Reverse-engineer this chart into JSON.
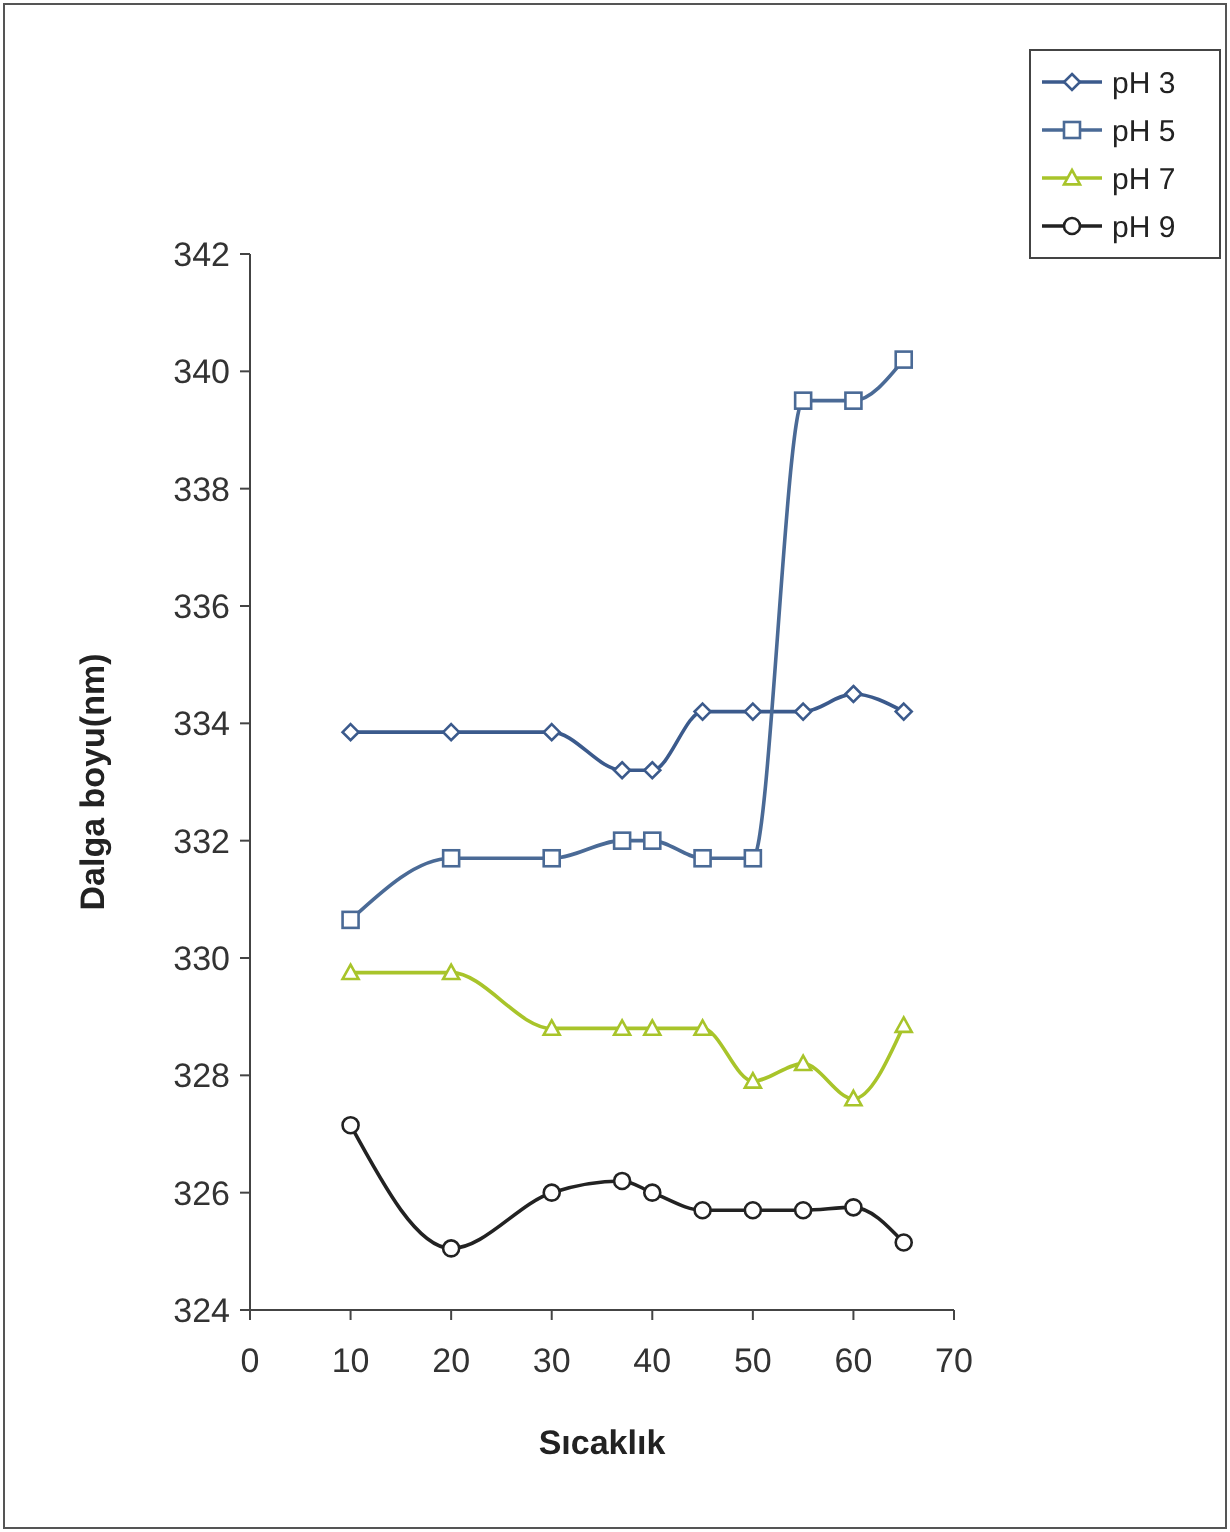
{
  "chart_data": {
    "type": "line",
    "xlabel": "Sıcaklık",
    "ylabel": "Dalga boyu(nm)",
    "x": [
      10,
      20,
      30,
      37,
      40,
      45,
      50,
      55,
      60,
      65
    ],
    "xlim": [
      0,
      70
    ],
    "xticks": [
      0,
      10,
      20,
      30,
      40,
      50,
      60,
      70
    ],
    "ylim": [
      324,
      342
    ],
    "yticks": [
      324,
      326,
      328,
      330,
      332,
      334,
      336,
      338,
      340,
      342
    ],
    "grid": false,
    "legend": "top right",
    "series": [
      {
        "name": "pH 3",
        "color": "#3b5a8c",
        "marker": "diamond",
        "values": [
          333.85,
          333.85,
          333.85,
          333.2,
          333.2,
          334.2,
          334.2,
          334.2,
          334.5,
          334.2
        ]
      },
      {
        "name": "pH 5",
        "color": "#4a6a96",
        "marker": "square",
        "values": [
          330.65,
          331.7,
          331.7,
          332.0,
          332.0,
          331.7,
          331.7,
          339.5,
          339.5,
          340.2
        ]
      },
      {
        "name": "pH 7",
        "color": "#a8c42a",
        "marker": "triangle",
        "values": [
          329.75,
          329.75,
          328.8,
          328.8,
          328.8,
          328.8,
          327.9,
          328.2,
          327.6,
          328.85
        ]
      },
      {
        "name": "pH 9",
        "color": "#222222",
        "marker": "circle",
        "values": [
          327.15,
          325.05,
          326.0,
          326.2,
          326.0,
          325.7,
          325.7,
          325.7,
          325.75,
          325.15
        ]
      }
    ]
  }
}
